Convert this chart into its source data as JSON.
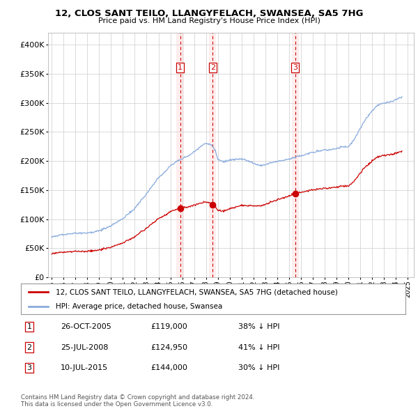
{
  "title": "12, CLOS SANT TEILO, LLANGYFELACH, SWANSEA, SA5 7HG",
  "subtitle": "Price paid vs. HM Land Registry's House Price Index (HPI)",
  "legend_house": "12, CLOS SANT TEILO, LLANGYFELACH, SWANSEA, SA5 7HG (detached house)",
  "legend_hpi": "HPI: Average price, detached house, Swansea",
  "footer1": "Contains HM Land Registry data © Crown copyright and database right 2024.",
  "footer2": "This data is licensed under the Open Government Licence v3.0.",
  "transactions": [
    {
      "num": 1,
      "date": "26-OCT-2005",
      "price": 119000,
      "pct": "38%",
      "dir": "↓"
    },
    {
      "num": 2,
      "date": "25-JUL-2008",
      "price": 124950,
      "pct": "41%",
      "dir": "↓"
    },
    {
      "num": 3,
      "date": "10-JUL-2015",
      "price": 144000,
      "pct": "30%",
      "dir": "↓"
    }
  ],
  "transaction_dates_decimal": [
    2005.82,
    2008.56,
    2015.52
  ],
  "transaction_prices": [
    119000,
    124950,
    144000
  ],
  "house_color": "#cc0000",
  "hpi_color": "#88aadd",
  "vline_color": "#cc0000",
  "vband_color": "#ffeeee",
  "background_color": "#ffffff",
  "grid_color": "#cccccc",
  "ylim": [
    0,
    420000
  ],
  "yticks": [
    0,
    50000,
    100000,
    150000,
    200000,
    250000,
    300000,
    350000,
    400000
  ],
  "xlim_start": 1994.7,
  "xlim_end": 2025.5,
  "xticks": [
    1995,
    1996,
    1997,
    1998,
    1999,
    2000,
    2001,
    2002,
    2003,
    2004,
    2005,
    2006,
    2007,
    2008,
    2009,
    2010,
    2011,
    2012,
    2013,
    2014,
    2015,
    2016,
    2017,
    2018,
    2019,
    2020,
    2021,
    2022,
    2023,
    2024,
    2025
  ]
}
